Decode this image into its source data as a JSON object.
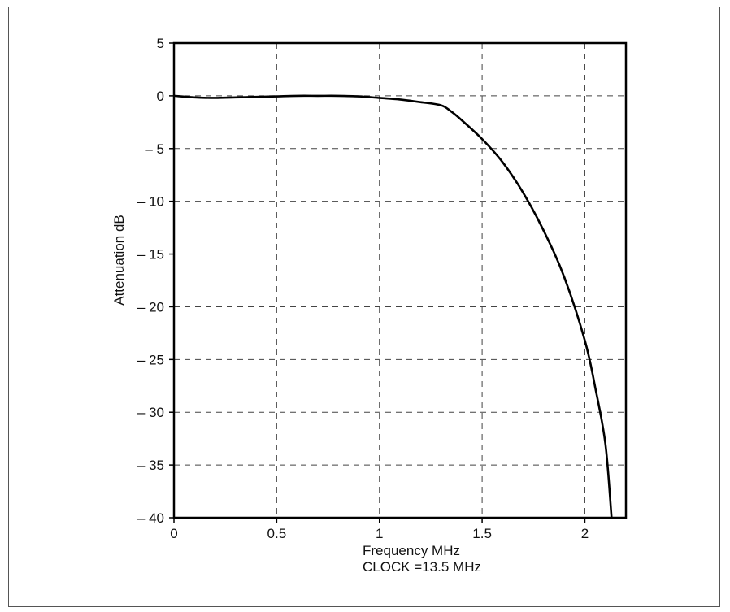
{
  "chart_data": {
    "type": "line",
    "title": "",
    "xlabel": "Frequency MHz",
    "xlabel_sub": "CLOCK =13.5 MHz",
    "ylabel": "Attenuation dB",
    "xlim": [
      0,
      2.2
    ],
    "ylim": [
      -40,
      5
    ],
    "grid": true,
    "x_ticks": [
      0,
      0.5,
      1,
      1.5,
      2
    ],
    "x_tick_labels": [
      "0",
      "0.5",
      "1",
      "1.5",
      "2"
    ],
    "y_ticks": [
      5,
      0,
      -5,
      -10,
      -15,
      -20,
      -25,
      -30,
      -35,
      -40
    ],
    "y_tick_labels": [
      "5",
      "0",
      "– 5",
      "– 10",
      "– 15",
      "– 20",
      "– 25",
      "– 30",
      "– 35",
      "– 40"
    ],
    "series": [
      {
        "x": [
          0,
          0.1,
          0.2,
          0.3,
          0.4,
          0.5,
          0.6,
          0.7,
          0.8,
          0.9,
          1.0,
          1.1,
          1.2,
          1.3,
          1.35,
          1.4,
          1.5,
          1.6,
          1.7,
          1.8,
          1.9,
          2.0,
          2.05,
          2.1,
          2.13
        ],
        "y": [
          0,
          -0.15,
          -0.2,
          -0.15,
          -0.1,
          -0.05,
          0,
          0,
          0,
          -0.05,
          -0.2,
          -0.35,
          -0.6,
          -0.9,
          -1.5,
          -2.3,
          -4.1,
          -6.3,
          -9.2,
          -12.8,
          -17.2,
          -23.2,
          -27.6,
          -33.0,
          -40
        ]
      }
    ]
  }
}
